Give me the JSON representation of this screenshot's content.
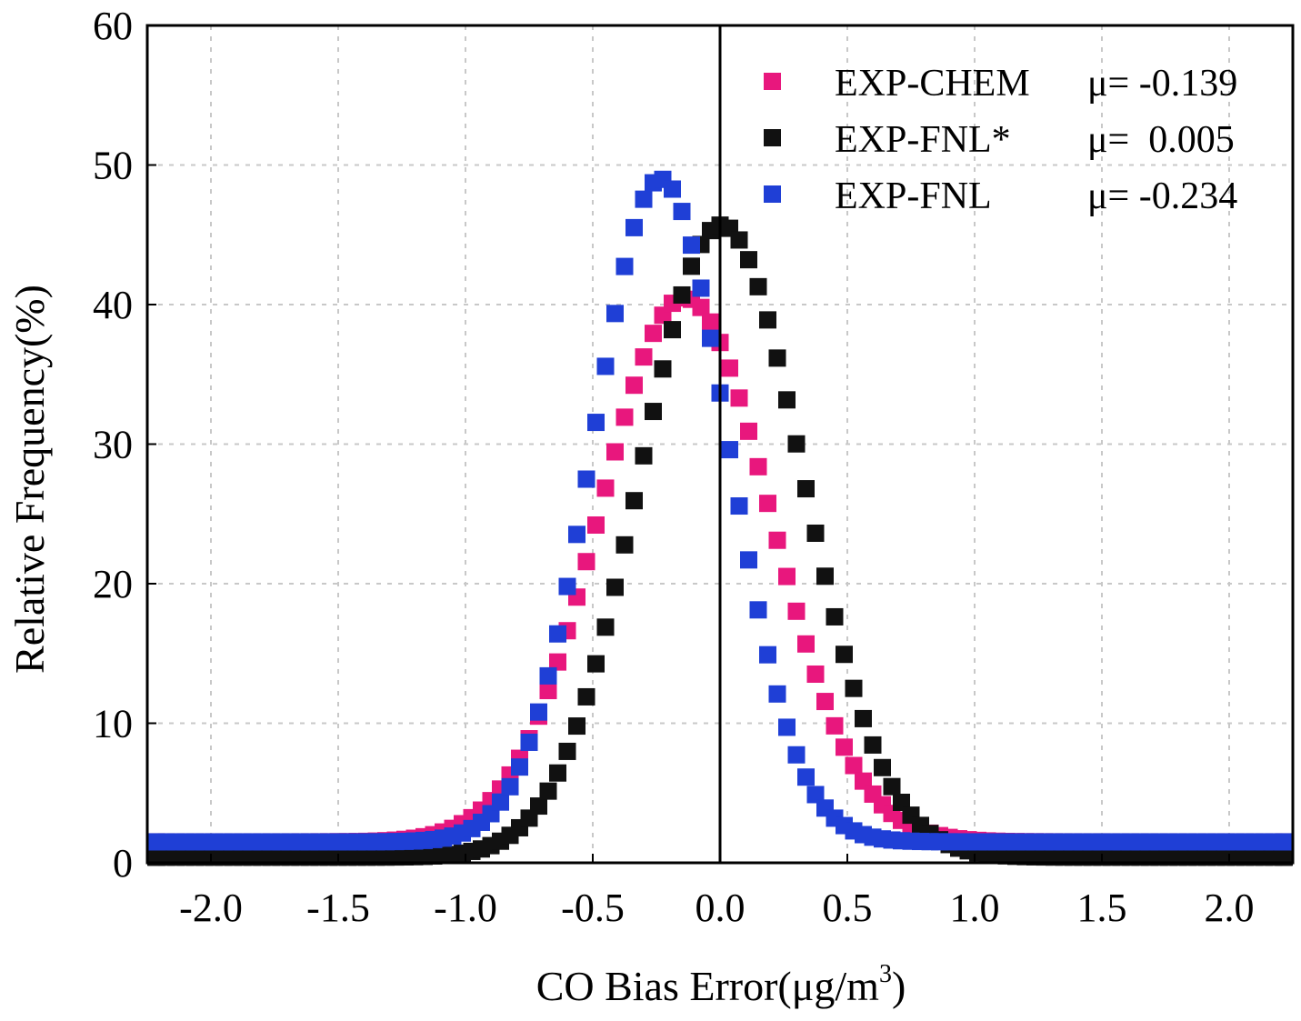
{
  "chart_data": {
    "type": "scatter",
    "xlabel": "CO Bias Error(μg/m",
    "xlabel_superscript": "3",
    "xlabel_suffix": ")",
    "ylabel": "Relative Frequency(%)",
    "xlim": [
      -2.25,
      2.25
    ],
    "ylim": [
      0,
      60
    ],
    "xticks": [
      -2.0,
      -1.5,
      -1.0,
      -0.5,
      0.0,
      0.5,
      1.0,
      1.5,
      2.0
    ],
    "xtick_labels": [
      "-2.0",
      "-1.5",
      "-1.0",
      "-0.5",
      "0.0",
      "0.5",
      "1.0",
      "1.5",
      "2.0"
    ],
    "yticks": [
      0,
      10,
      20,
      30,
      40,
      50,
      60
    ],
    "ytick_labels": [
      "0",
      "10",
      "20",
      "30",
      "40",
      "50",
      "60"
    ],
    "grid": true,
    "reference_line_x": 0.0,
    "legend_position": "top-right",
    "series": [
      {
        "name": "EXP-CHEM",
        "stat_label": "μ= -0.139",
        "color": "#e8177d",
        "mean": -0.139,
        "sigma": 0.335,
        "peak": 40.5,
        "baseline": 1.5,
        "x_start": -2.25,
        "x_end": 2.25,
        "x_step": 0.0375
      },
      {
        "name": "EXP-FNL*",
        "stat_label": "μ=  0.005",
        "color": "#111111",
        "mean": 0.005,
        "sigma": 0.32,
        "peak": 45.7,
        "baseline": 0.4,
        "x_start": -2.25,
        "x_end": 2.25,
        "x_step": 0.0375
      },
      {
        "name": "EXP-FNL",
        "stat_label": "μ= -0.234",
        "color": "#1f3fd6",
        "mean": -0.234,
        "sigma": 0.265,
        "peak": 49.0,
        "baseline": 1.5,
        "x_start": -2.25,
        "x_end": 2.25,
        "x_step": 0.0375
      }
    ]
  }
}
